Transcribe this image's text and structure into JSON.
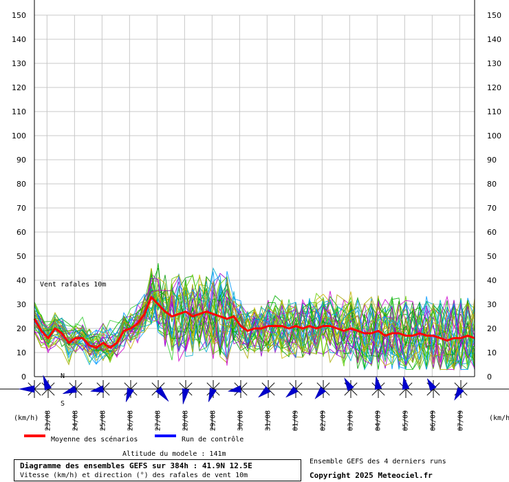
{
  "chart_data": {
    "type": "line",
    "title": "Diagramme des ensembles GEFS sur 384h : 41.9N 12.5E",
    "subtitle": "Vitesse (km/h) et direction (°) des rafales de vent 10m",
    "inner_label": "Vent rafales 10m",
    "y_unit_left": "(km/h)",
    "y_unit_right": "(km/h)",
    "ylim": [
      0,
      150
    ],
    "yticks": [
      0,
      10,
      20,
      30,
      40,
      50,
      60,
      70,
      80,
      90,
      100,
      110,
      120,
      130,
      140,
      150
    ],
    "xlim": [
      0,
      384
    ],
    "grid": true,
    "date_ticks": [
      {
        "label": "23/08",
        "h": 11
      },
      {
        "label": "24/08",
        "h": 35
      },
      {
        "label": "25/08",
        "h": 59
      },
      {
        "label": "26/08",
        "h": 83
      },
      {
        "label": "27/08",
        "h": 107
      },
      {
        "label": "28/08",
        "h": 131
      },
      {
        "label": "29/08",
        "h": 155
      },
      {
        "label": "30/08",
        "h": 179
      },
      {
        "label": "31/08",
        "h": 203
      },
      {
        "label": "01/09",
        "h": 227
      },
      {
        "label": "02/09",
        "h": 251
      },
      {
        "label": "03/09",
        "h": 275
      },
      {
        "label": "04/09",
        "h": 299
      },
      {
        "label": "05/09",
        "h": 323
      },
      {
        "label": "06/09",
        "h": 347
      },
      {
        "label": "07/09",
        "h": 371
      }
    ],
    "mean_series": {
      "name": "Moyenne des scénarios",
      "color": "#ff0000",
      "x": [
        0,
        6,
        12,
        18,
        24,
        30,
        36,
        42,
        48,
        54,
        60,
        66,
        72,
        78,
        84,
        90,
        96,
        102,
        108,
        114,
        120,
        126,
        132,
        138,
        144,
        150,
        156,
        162,
        168,
        174,
        180,
        186,
        192,
        198,
        204,
        210,
        216,
        222,
        228,
        234,
        240,
        246,
        252,
        258,
        264,
        270,
        276,
        282,
        288,
        294,
        300,
        306,
        312,
        318,
        324,
        330,
        336,
        342,
        348,
        354,
        360,
        366,
        372,
        378,
        384
      ],
      "y": [
        24,
        19,
        16,
        20,
        18,
        14,
        16,
        16,
        13,
        12,
        14,
        12,
        14,
        19,
        20,
        22,
        26,
        33,
        30,
        27,
        25,
        26,
        27,
        25,
        26,
        27,
        26,
        25,
        24,
        25,
        21,
        19,
        20,
        20,
        21,
        21,
        21,
        20,
        21,
        20,
        21,
        20,
        21,
        21,
        20,
        19,
        20,
        19,
        18,
        18,
        19,
        17,
        18,
        18,
        17,
        17,
        18,
        17,
        17,
        16,
        15,
        16,
        16,
        17,
        16
      ]
    },
    "control_series": {
      "name": "Run de contrôle",
      "color": "#0000ff"
    },
    "ensemble_colors": [
      "#00b000",
      "#33cc33",
      "#66cc00",
      "#009900",
      "#cc00cc",
      "#9900cc",
      "#00aacc",
      "#0099ff",
      "#c8b400",
      "#aaaa00"
    ],
    "wind_direction": {
      "top_label": "N",
      "bottom_label": "S",
      "roses": [
        {
          "h": 0,
          "dir": 270,
          "strength": 0.6
        },
        {
          "h": 12,
          "dir": 340,
          "strength": 0.55
        },
        {
          "h": 36,
          "dir": 250,
          "strength": 0.5
        },
        {
          "h": 60,
          "dir": 260,
          "strength": 0.45
        },
        {
          "h": 84,
          "dir": 200,
          "strength": 0.5
        },
        {
          "h": 108,
          "dir": 140,
          "strength": 0.65
        },
        {
          "h": 132,
          "dir": 190,
          "strength": 0.6
        },
        {
          "h": 156,
          "dir": 200,
          "strength": 0.5
        },
        {
          "h": 180,
          "dir": 260,
          "strength": 0.45
        },
        {
          "h": 204,
          "dir": 230,
          "strength": 0.45
        },
        {
          "h": 228,
          "dir": 230,
          "strength": 0.45
        },
        {
          "h": 252,
          "dir": 220,
          "strength": 0.45
        },
        {
          "h": 276,
          "dir": 330,
          "strength": 0.45
        },
        {
          "h": 300,
          "dir": 350,
          "strength": 0.45
        },
        {
          "h": 324,
          "dir": 350,
          "strength": 0.45
        },
        {
          "h": 348,
          "dir": 330,
          "strength": 0.4
        },
        {
          "h": 372,
          "dir": 210,
          "strength": 0.45
        }
      ]
    }
  },
  "legend": {
    "mean_label": "Moyenne des scénarios",
    "control_label": "Run de contrôle"
  },
  "footer": {
    "altitude": "Altitude du modele : 141m",
    "title": "Diagramme des ensembles GEFS sur 384h : 41.9N 12.5E",
    "subtitle": "Vitesse (km/h) et direction (°) des rafales de vent 10m",
    "ensemble_note": "Ensemble GEFS des 4 derniers runs",
    "copyright": "Copyright 2025 Meteociel.fr"
  }
}
